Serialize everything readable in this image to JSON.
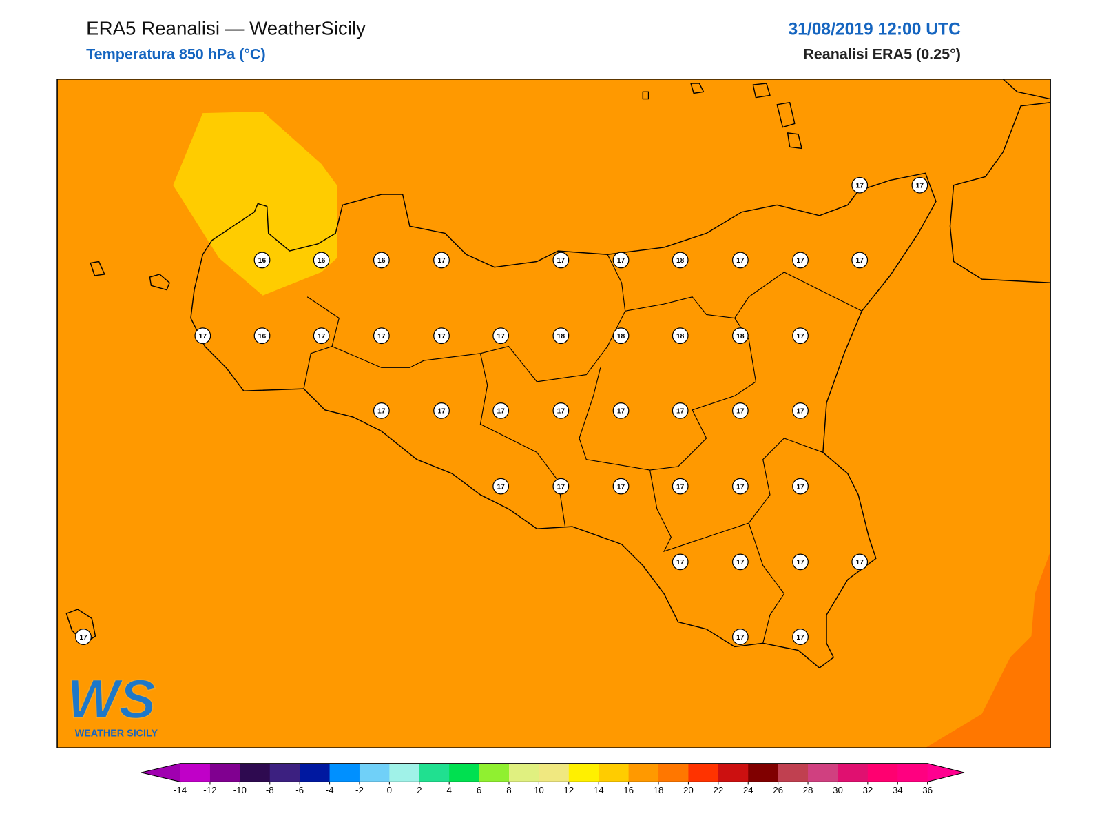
{
  "header": {
    "title": "ERA5 Reanalisi — WeatherSicily",
    "subtitle": "Temperatura 850 hPa (°C)",
    "datetime": "31/08/2019 12:00 UTC",
    "source": "Reanalisi ERA5 (0.25°)"
  },
  "stations": [
    17,
    17,
    16,
    16,
    16,
    17,
    17,
    17,
    18,
    17,
    17,
    17,
    17,
    16,
    17,
    17,
    17,
    17,
    18,
    18,
    18,
    18,
    17,
    17,
    17,
    17,
    17,
    17,
    17,
    17,
    17,
    17,
    17,
    17,
    17,
    17,
    17,
    17,
    17,
    17,
    17,
    17,
    17,
    17
  ],
  "colorbar": {
    "ticks": [
      -14,
      -12,
      -10,
      -8,
      -6,
      -4,
      -2,
      0,
      2,
      4,
      6,
      8,
      10,
      12,
      14,
      16,
      18,
      20,
      22,
      24,
      26,
      28,
      30,
      32,
      34,
      36
    ],
    "colors": [
      "#c000c8",
      "#800090",
      "#2e0a50",
      "#3c2080",
      "#0018a0",
      "#0090ff",
      "#70d0f8",
      "#a0f2e8",
      "#20e090",
      "#00e050",
      "#90f030",
      "#e0f080",
      "#f0e880",
      "#fff000",
      "#ffcc00",
      "#ff9900",
      "#ff7700",
      "#ff3300",
      "#cc1010",
      "#800000",
      "#c04050",
      "#d04080",
      "#e01070",
      "#ff0070",
      "#ff0080"
    ],
    "under": "#a000b0",
    "over": "#ff0090"
  },
  "logo": {
    "mark": "WS",
    "text": "WEATHER SICILY"
  }
}
